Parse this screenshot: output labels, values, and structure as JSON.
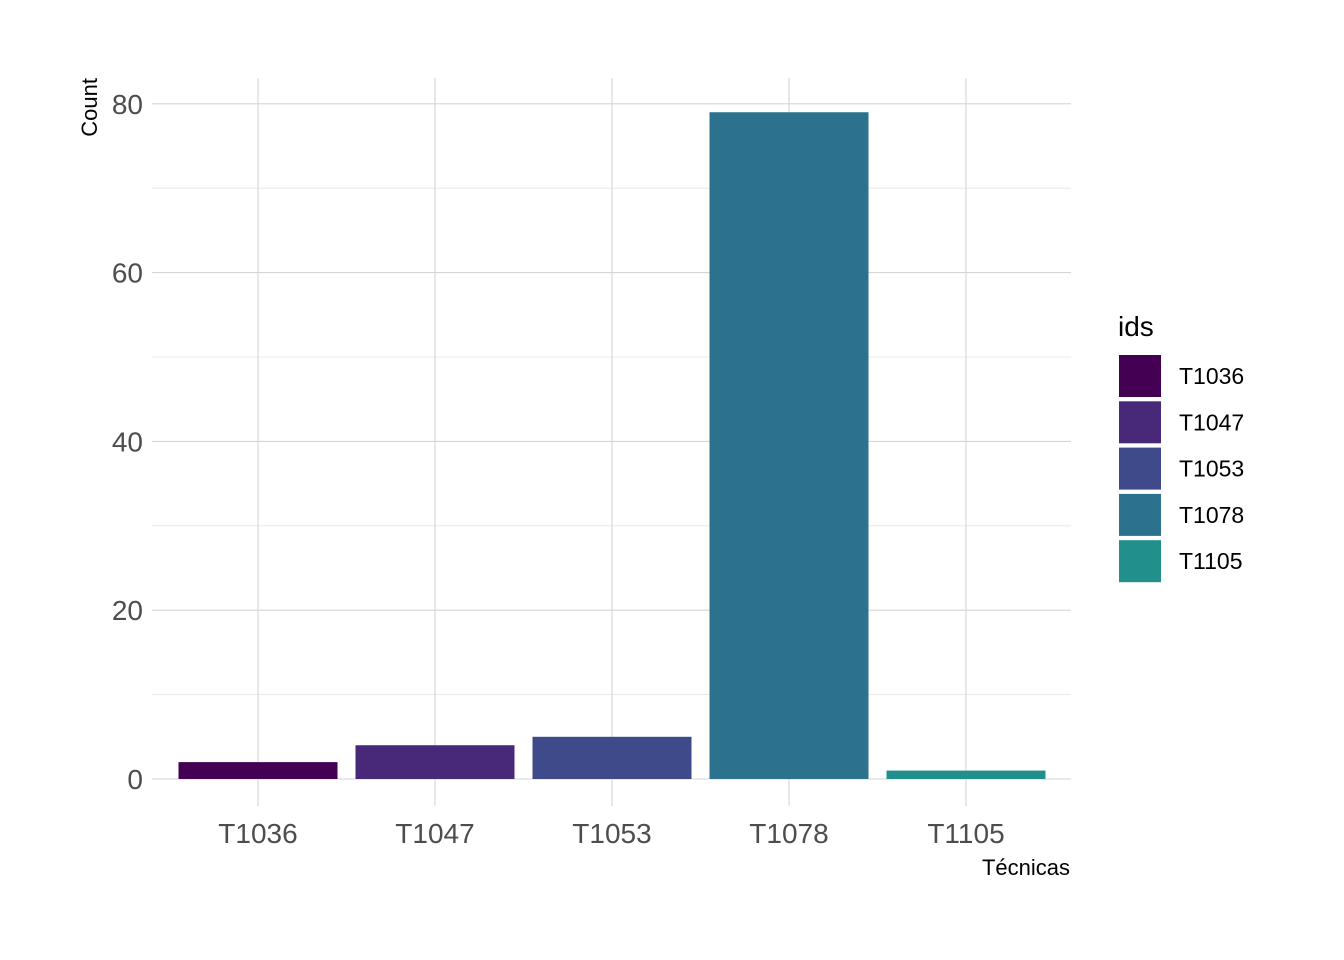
{
  "chart_data": {
    "type": "bar",
    "title": "",
    "xlabel": "Técnicas",
    "ylabel": "Count",
    "categories": [
      "T1036",
      "T1047",
      "T1053",
      "T1078",
      "T1105"
    ],
    "values": [
      2,
      4,
      5,
      79,
      1
    ],
    "colors": [
      "#440154",
      "#482878",
      "#3E4A89",
      "#2C728E",
      "#21908C"
    ],
    "ylim": [
      0,
      83
    ],
    "yticks": [
      0,
      20,
      40,
      60,
      80
    ],
    "grid": true,
    "legend": {
      "title": "ids",
      "placement": "right",
      "entries": [
        "T1036",
        "T1047",
        "T1053",
        "T1078",
        "T1105"
      ]
    }
  }
}
